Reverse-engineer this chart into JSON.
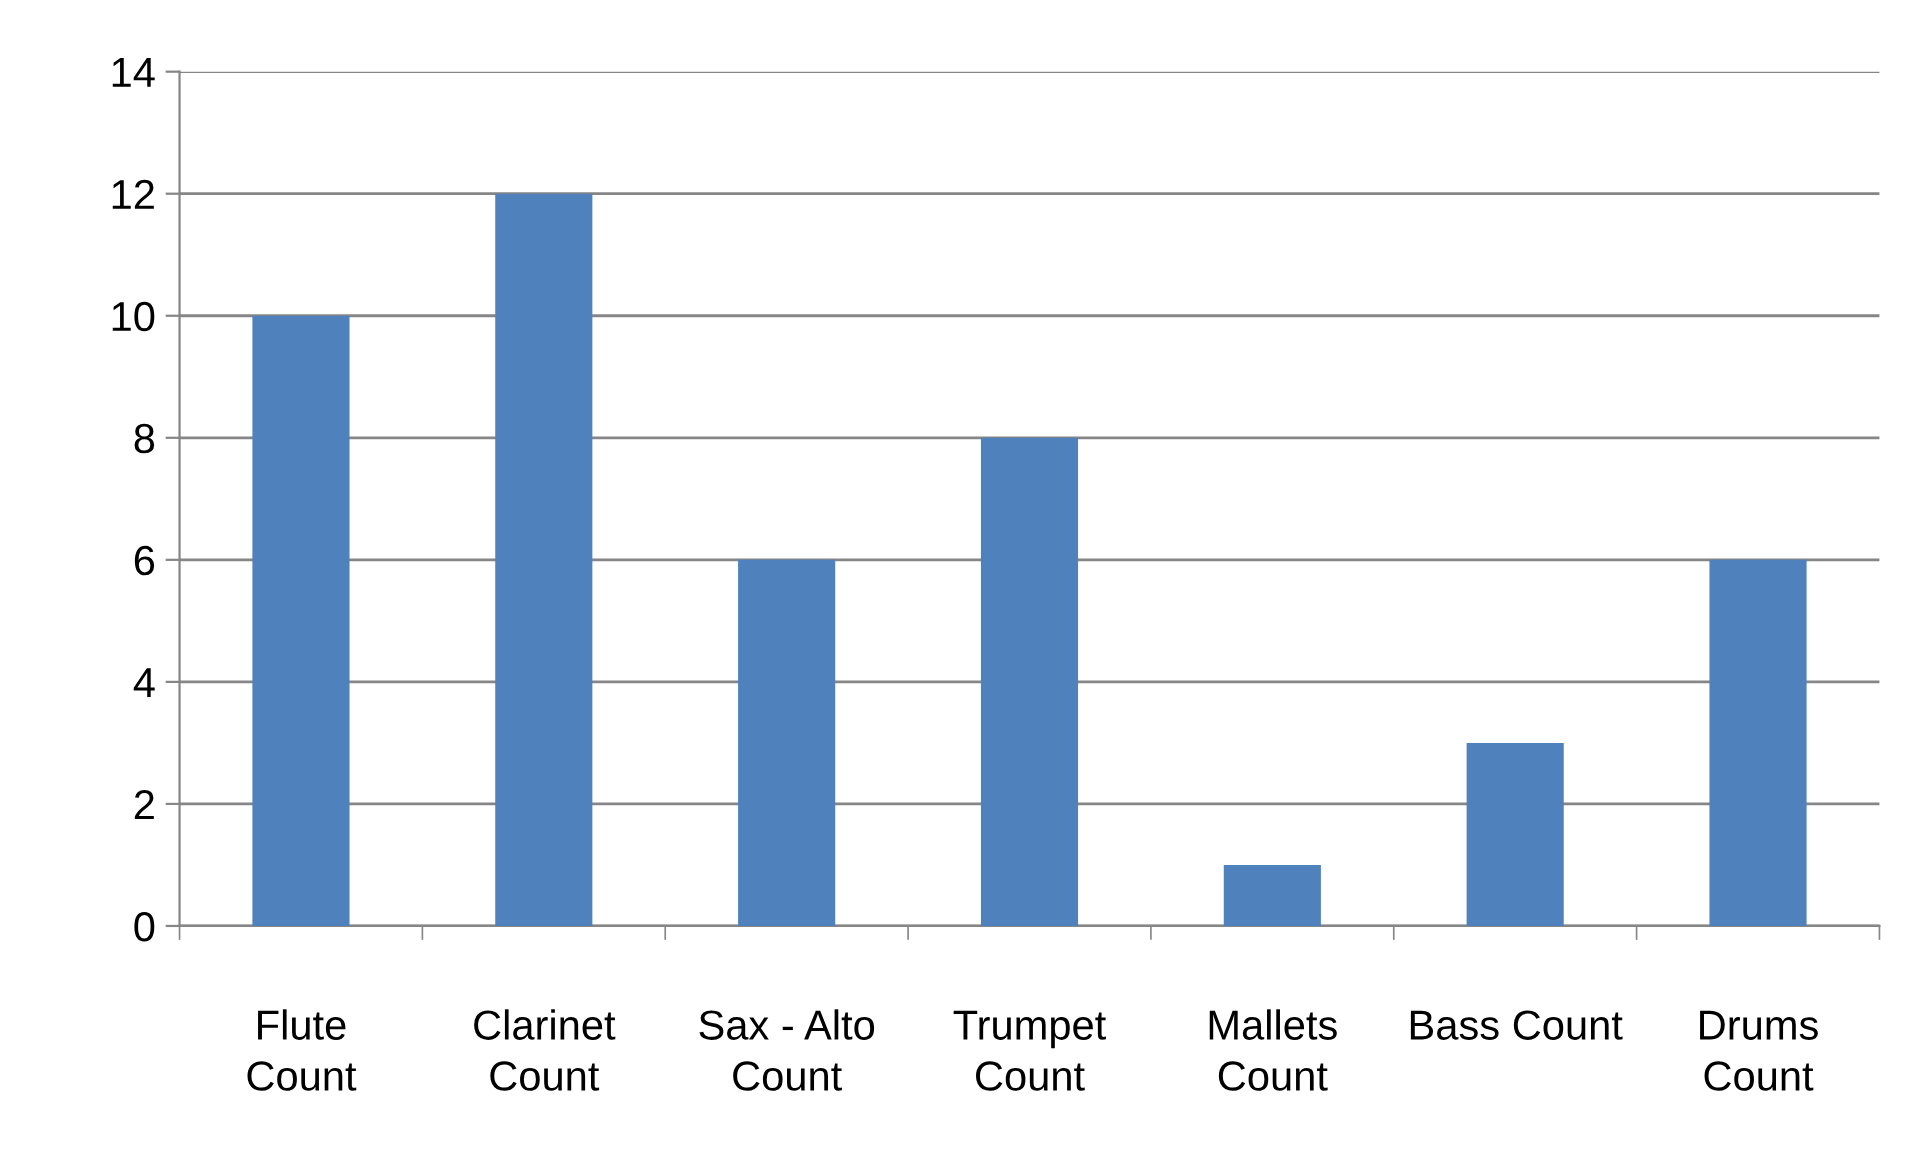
{
  "chart_data": {
    "type": "bar",
    "categories": [
      "Flute\nCount",
      "Clarinet\nCount",
      "Sax - Alto\nCount",
      "Trumpet\nCount",
      "Mallets\nCount",
      "Bass Count",
      "Drums\nCount"
    ],
    "values": [
      10,
      12,
      6,
      8,
      1,
      3,
      6
    ],
    "color": "#4f81bd",
    "ylim": [
      0,
      14
    ],
    "yticks": [
      0,
      2,
      4,
      6,
      8,
      10,
      12,
      14
    ],
    "grid": "y",
    "legend": false
  }
}
